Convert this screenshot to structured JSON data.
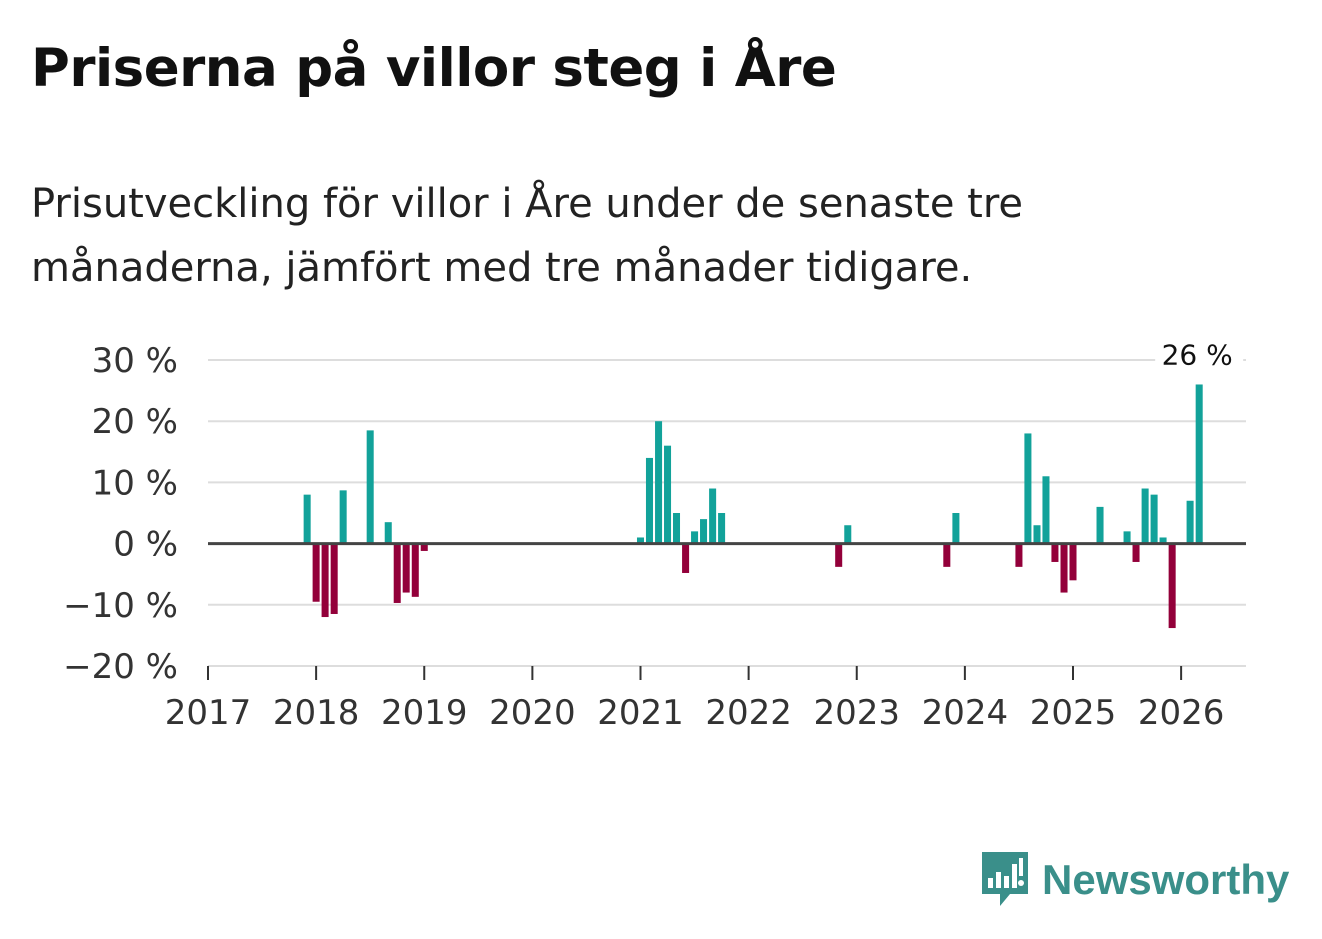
{
  "title": "Priserna på villor steg i Åre",
  "subtitle": "Prisutveckling för villor i Åre under de senaste tre månaderna, jämfört med tre månader tidigare.",
  "brand": {
    "name": "Newsworthy"
  },
  "colors": {
    "positive": "#12a29a",
    "negative": "#93003a",
    "grid": "#dddddd",
    "zero_line": "#444444"
  },
  "chart_data": {
    "type": "bar",
    "title": "Priserna på villor steg i Åre",
    "ylabel": "",
    "xlabel": "",
    "ylim": [
      -20,
      30
    ],
    "yticks": [
      30,
      20,
      10,
      0,
      -10,
      -20
    ],
    "ytick_labels": [
      "30 %",
      "20 %",
      "10 %",
      "0 %",
      "−10 %",
      "−20 %"
    ],
    "xlim": [
      2017.0,
      2026.6
    ],
    "xticks": [
      2017,
      2018,
      2019,
      2020,
      2021,
      2022,
      2023,
      2024,
      2025,
      2026
    ],
    "xtick_labels": [
      "2017",
      "2018",
      "2019",
      "2020",
      "2021",
      "2022",
      "2023",
      "2024",
      "2025",
      "2026"
    ],
    "series": [
      {
        "name": "Prisutveckling",
        "x": [
          2017.917,
          2018.0,
          2018.083,
          2018.167,
          2018.25,
          2018.5,
          2018.667,
          2018.75,
          2018.833,
          2018.917,
          2019.0,
          2021.0,
          2021.083,
          2021.167,
          2021.25,
          2021.333,
          2021.417,
          2021.5,
          2021.583,
          2021.667,
          2021.75,
          2022.833,
          2022.917,
          2023.833,
          2023.917,
          2024.5,
          2024.583,
          2024.667,
          2024.75,
          2024.833,
          2024.917,
          2025.0,
          2025.25,
          2025.5,
          2025.583,
          2025.667,
          2025.75,
          2025.833,
          2025.917,
          2026.083,
          2026.167
        ],
        "values": [
          8,
          -9.5,
          -12,
          -11.5,
          8.7,
          18.5,
          3.5,
          -9.7,
          -8,
          -8.7,
          -1.2,
          1,
          14,
          20,
          16,
          5,
          -4.8,
          2,
          4,
          9,
          5,
          -3.8,
          3,
          -3.8,
          5,
          -3.8,
          18,
          3,
          11,
          -3,
          -8,
          -6,
          6,
          2,
          -3,
          9,
          8,
          1,
          -13.8,
          7,
          26
        ]
      }
    ],
    "annotations": [
      {
        "x": 2026.167,
        "y": 26,
        "label": "26 %"
      }
    ]
  }
}
